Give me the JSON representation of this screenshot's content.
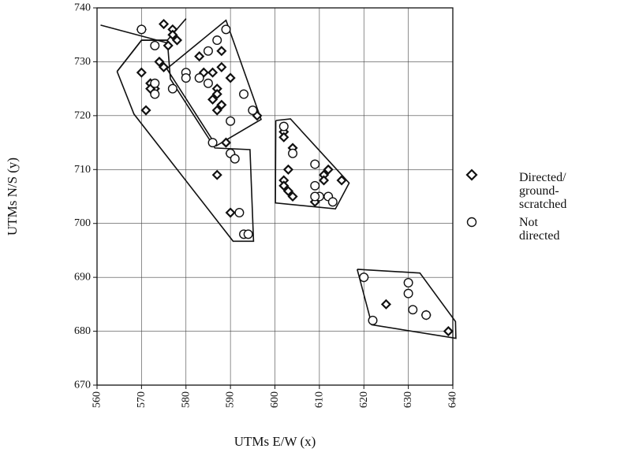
{
  "chart_data": {
    "type": "scatter",
    "xlabel": "UTMs E/W (x)",
    "ylabel": "UTMs N/S (y)",
    "xlim": [
      560,
      640
    ],
    "ylim": [
      670,
      740
    ],
    "x_ticks": [
      "560",
      "570",
      "580",
      "590",
      "600",
      "610",
      "620",
      "630",
      "640"
    ],
    "y_ticks": [
      "670",
      "680",
      "690",
      "700",
      "710",
      "720",
      "730",
      "740"
    ],
    "grid": true,
    "legend_position": "right",
    "series": [
      {
        "name": "Directed/\nground-scratched",
        "marker": "diamond",
        "points": [
          [
            570,
            736
          ],
          [
            575,
            737
          ],
          [
            577,
            736
          ],
          [
            577,
            735
          ],
          [
            578,
            734
          ],
          [
            576,
            733
          ],
          [
            570,
            728
          ],
          [
            574,
            730
          ],
          [
            575,
            729
          ],
          [
            572,
            726
          ],
          [
            573,
            725
          ],
          [
            572,
            725
          ],
          [
            571,
            721
          ],
          [
            583,
            731
          ],
          [
            584,
            728
          ],
          [
            586,
            728
          ],
          [
            588,
            732
          ],
          [
            588,
            729
          ],
          [
            590,
            727
          ],
          [
            587,
            725
          ],
          [
            587,
            724
          ],
          [
            586,
            723
          ],
          [
            588,
            722
          ],
          [
            587,
            721
          ],
          [
            596,
            720
          ],
          [
            589,
            715
          ],
          [
            590,
            713
          ],
          [
            587,
            709
          ],
          [
            590,
            702
          ],
          [
            602,
            717
          ],
          [
            602,
            716
          ],
          [
            604,
            714
          ],
          [
            603,
            710
          ],
          [
            602,
            708
          ],
          [
            602,
            707
          ],
          [
            603,
            706
          ],
          [
            604,
            705
          ],
          [
            609,
            704
          ],
          [
            611,
            709
          ],
          [
            612,
            710
          ],
          [
            611,
            708
          ],
          [
            615,
            708
          ],
          [
            620,
            690
          ],
          [
            625,
            685
          ],
          [
            634,
            683
          ],
          [
            639,
            680
          ]
        ]
      },
      {
        "name": "Not directed",
        "marker": "circle",
        "points": [
          [
            570,
            736
          ],
          [
            573,
            733
          ],
          [
            589,
            736
          ],
          [
            587,
            734
          ],
          [
            585,
            732
          ],
          [
            583,
            727
          ],
          [
            580,
            728
          ],
          [
            580,
            727
          ],
          [
            573,
            726
          ],
          [
            573,
            724
          ],
          [
            577,
            725
          ],
          [
            585,
            726
          ],
          [
            593,
            724
          ],
          [
            595,
            721
          ],
          [
            590,
            719
          ],
          [
            586,
            715
          ],
          [
            590,
            713
          ],
          [
            591,
            712
          ],
          [
            592,
            702
          ],
          [
            593,
            698
          ],
          [
            594,
            698
          ],
          [
            602,
            718
          ],
          [
            604,
            713
          ],
          [
            609,
            711
          ],
          [
            609,
            707
          ],
          [
            610,
            705
          ],
          [
            609,
            705
          ],
          [
            612,
            705
          ],
          [
            613,
            704
          ],
          [
            620,
            690
          ],
          [
            622,
            682
          ],
          [
            630,
            689
          ],
          [
            630,
            687
          ],
          [
            631,
            684
          ],
          [
            634,
            683
          ]
        ]
      }
    ],
    "hulls": [
      [
        [
          564.5,
          728.2
        ],
        [
          570,
          734
        ],
        [
          575.8,
          734
        ],
        [
          580,
          738
        ]
      ],
      [
        [
          560.8,
          736.8
        ],
        [
          575.8,
          733.5
        ]
      ],
      [
        [
          564.5,
          728.2
        ],
        [
          570,
          734
        ],
        [
          575.8,
          734
        ],
        [
          576.5,
          726.8
        ],
        [
          586.5,
          714
        ],
        [
          594.4,
          713.7
        ],
        [
          595.2,
          696.7
        ],
        [
          590.6,
          696.7
        ],
        [
          568.3,
          720.3
        ],
        [
          564.5,
          728.2
        ]
      ],
      [
        [
          575.7,
          728.7
        ],
        [
          589,
          737.7
        ],
        [
          596.9,
          719.3
        ],
        [
          586.8,
          714.4
        ],
        [
          575.7,
          728.7
        ]
      ],
      [
        [
          600.2,
          719.1
        ],
        [
          603.5,
          719.4
        ],
        [
          616.7,
          707.5
        ],
        [
          613.6,
          702.7
        ],
        [
          600.1,
          703.8
        ],
        [
          600.2,
          719.1
        ]
      ],
      [
        [
          618.5,
          691.5
        ],
        [
          632.6,
          690.8
        ],
        [
          640.6,
          681.8
        ],
        [
          640.7,
          678.7
        ],
        [
          621.8,
          681.2
        ],
        [
          618.5,
          691.5
        ]
      ]
    ]
  }
}
